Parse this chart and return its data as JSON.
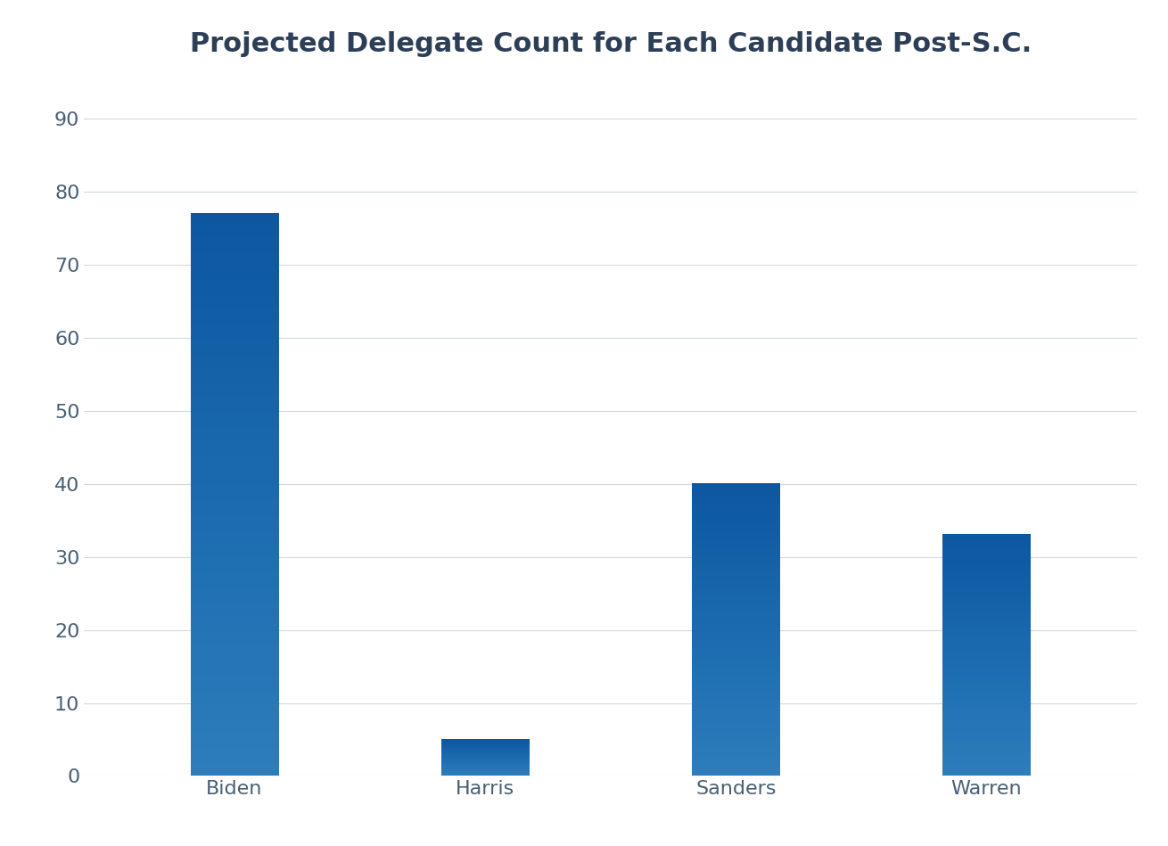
{
  "title": "Projected Delegate Count for Each Candidate Post-S.C.",
  "categories": [
    "Biden",
    "Harris",
    "Sanders",
    "Warren"
  ],
  "values": [
    77,
    5,
    40,
    33
  ],
  "bar_color_top": "#5b80c8",
  "bar_color_bottom": "#3a5eaa",
  "background_color": "#ffffff",
  "ylim": [
    0,
    95
  ],
  "yticks": [
    0,
    10,
    20,
    30,
    40,
    50,
    60,
    70,
    80,
    90
  ],
  "title_fontsize": 22,
  "title_color": "#2d3f57",
  "tick_label_color": "#4a5f75",
  "tick_label_fontsize": 16,
  "grid_color": "#d0d8e0",
  "bar_width": 0.35,
  "figsize": [
    13.1,
    9.49
  ],
  "dpi": 100
}
